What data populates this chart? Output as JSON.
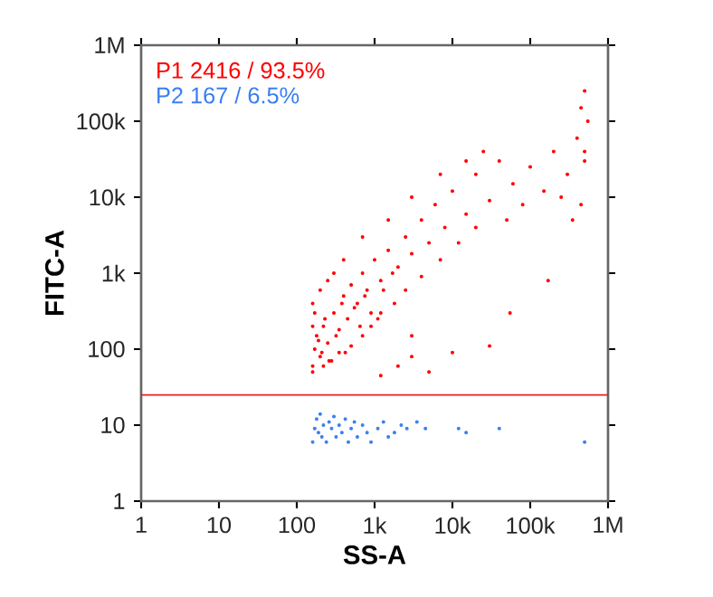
{
  "chart_data": {
    "type": "scatter",
    "xlabel": "SS-A",
    "ylabel": "FITC-A",
    "log": "xy",
    "marker": "circle",
    "grid": false,
    "xlim": [
      1,
      1000000
    ],
    "ylim": [
      1,
      1000000
    ],
    "xticks": [
      1,
      10,
      100,
      {
        "value": 1000,
        "label": "1k"
      },
      {
        "value": 10000,
        "label": "10k"
      },
      {
        "value": 100000,
        "label": "100k"
      },
      {
        "value": 1000000,
        "label": "1M"
      }
    ],
    "yticks": [
      1,
      10,
      100,
      {
        "value": 1000,
        "label": "1k"
      },
      {
        "value": 10000,
        "label": "10k"
      },
      {
        "value": 100000,
        "label": "100k"
      },
      {
        "value": 1000000,
        "label": "1M"
      }
    ],
    "annotations": [
      "P1  2416 / 93.5%",
      "P2  167 / 6.5%"
    ],
    "ref_lines": [
      {
        "axis": "y",
        "value": 25,
        "color": "#e8201e"
      }
    ],
    "series": [
      {
        "color": "#ff0000",
        "x": [
          160,
          170,
          180,
          200,
          220,
          250,
          300,
          350,
          400,
          450,
          500,
          600,
          700,
          800,
          1000,
          1200,
          1500,
          2000,
          2500,
          3000,
          4000,
          5000,
          6000,
          8000,
          10000,
          15000,
          20000,
          30000,
          40000,
          60000,
          100000,
          150000,
          200000,
          300000,
          400000,
          500000,
          500000,
          550000,
          450000,
          1200,
          2000,
          3000,
          5000,
          10000,
          30000,
          55000,
          170000,
          3000,
          160,
          160,
          160,
          170,
          200,
          250,
          300,
          400,
          220,
          280,
          350,
          500,
          700,
          900,
          1200,
          1800,
          2500,
          4000,
          7000,
          12000,
          20000,
          50000,
          80000,
          250000,
          350000,
          3000,
          7000,
          15000,
          25000,
          700,
          1500,
          450000,
          500000,
          190,
          210,
          230,
          260,
          320,
          380,
          420,
          550,
          650,
          750,
          900,
          1100,
          1300,
          1700
        ],
        "values": [
          60,
          100,
          150,
          80,
          200,
          120,
          300,
          180,
          500,
          250,
          700,
          400,
          1000,
          600,
          1500,
          800,
          2000,
          1200,
          3000,
          1800,
          5000,
          2500,
          8000,
          4000,
          12000,
          6000,
          20000,
          9000,
          30000,
          15000,
          25000,
          12000,
          40000,
          20000,
          60000,
          30000,
          250000,
          100000,
          150000,
          45,
          60,
          80,
          50,
          90,
          110,
          300,
          800,
          150,
          50,
          200,
          400,
          300,
          600,
          800,
          1000,
          1500,
          60,
          70,
          90,
          110,
          150,
          200,
          300,
          400,
          600,
          900,
          1500,
          2500,
          4000,
          5000,
          8000,
          10000,
          5000,
          10000,
          20000,
          30000,
          40000,
          3000,
          5000,
          8000,
          40000,
          130,
          90,
          250,
          70,
          150,
          400,
          90,
          350,
          200,
          500,
          300,
          250,
          600,
          1000
        ]
      },
      {
        "color": "#3a7ff0",
        "x": [
          160,
          170,
          180,
          190,
          200,
          210,
          220,
          240,
          260,
          280,
          300,
          320,
          350,
          380,
          420,
          460,
          500,
          550,
          600,
          700,
          800,
          900,
          1100,
          1300,
          1500,
          1800,
          2200,
          2600,
          3500,
          4500,
          12000,
          15000,
          40000,
          500000
        ],
        "values": [
          6,
          9,
          12,
          8,
          14,
          7,
          10,
          6,
          11,
          9,
          13,
          7,
          10,
          8,
          12,
          6,
          9,
          11,
          7,
          10,
          8,
          6,
          9,
          11,
          7,
          8,
          10,
          9,
          11,
          9,
          9,
          8,
          9,
          6
        ]
      }
    ]
  }
}
